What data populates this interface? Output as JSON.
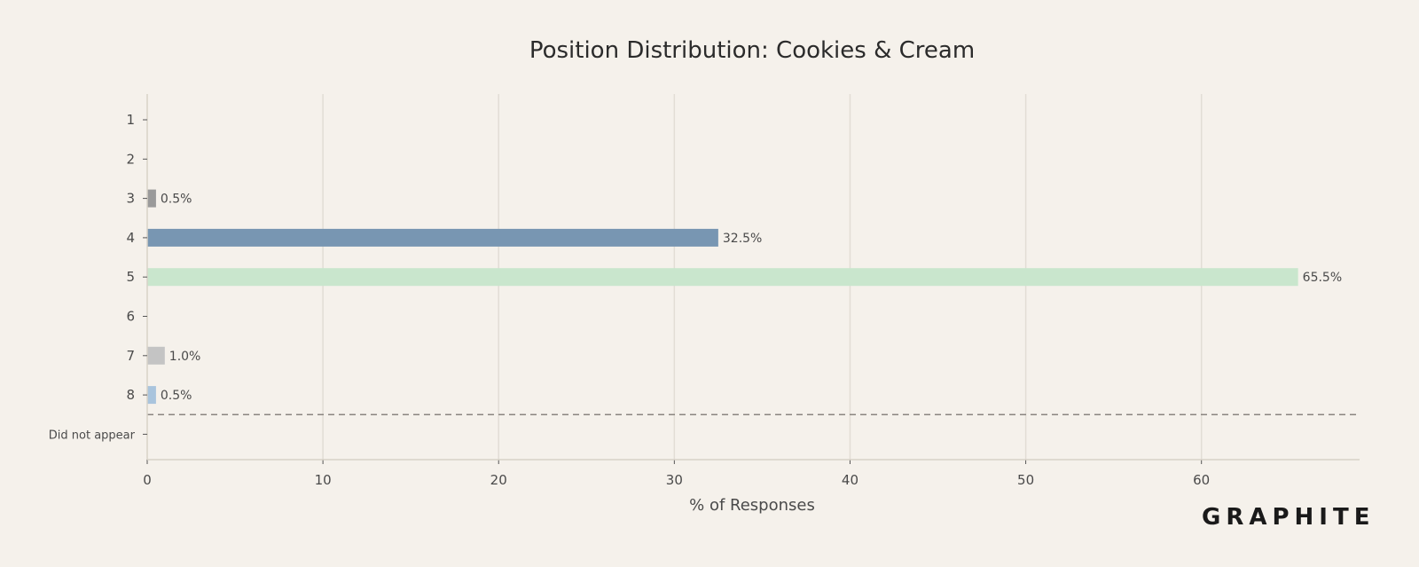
{
  "chart_data": {
    "type": "bar",
    "orientation": "horizontal",
    "title": "Position Distribution: Cookies & Cream",
    "xlabel": "% of Responses",
    "ylabel": "",
    "xlim": [
      0,
      69
    ],
    "xticks": [
      0,
      10,
      20,
      30,
      40,
      50,
      60
    ],
    "grid": "vertical",
    "categories": [
      "1",
      "2",
      "3",
      "4",
      "5",
      "6",
      "7",
      "8",
      "Did not appear"
    ],
    "values": [
      0,
      0,
      0.5,
      32.5,
      65.5,
      0,
      1.0,
      0.5,
      0
    ],
    "data_labels": [
      "",
      "",
      "0.5%",
      "32.5%",
      "65.5%",
      "",
      "1.0%",
      "0.5%",
      ""
    ],
    "colors": [
      "#9a9a9a",
      "#9a9a9a",
      "#9a9a9a",
      "#7896b2",
      "#c9e6cd",
      "#c4c4c4",
      "#c4c4c4",
      "#a9c4dd",
      "#c4c4c4"
    ],
    "separator": "dashed line between 8 and Did not appear"
  },
  "branding": {
    "logo_text": "GRAPHITE"
  }
}
